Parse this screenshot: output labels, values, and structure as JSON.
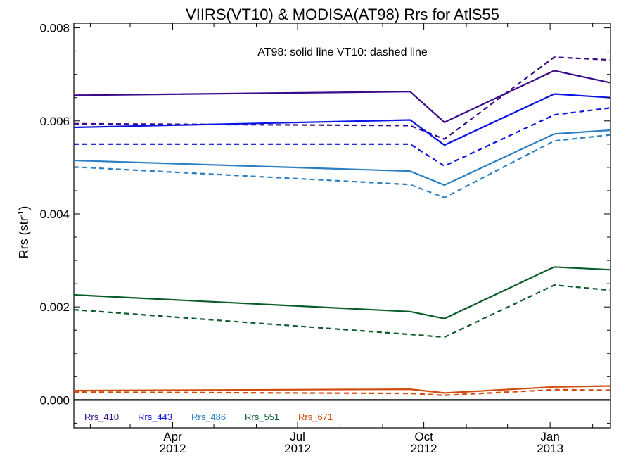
{
  "chart_data": {
    "type": "line",
    "title": "VIIRS(VT10) & MODISA(AT98)  Rrs for AtlS55",
    "annotation": "AT98: solid line   VT10: dashed line",
    "ylabel": "Rrs (str",
    "ylabel_sup": "-1",
    "xlabel": "",
    "ylim": [
      -0.0006,
      0.0081
    ],
    "xlim": [
      "2012-01-20",
      "2013-02-14"
    ],
    "grid": false,
    "legend_position": "bottom-left",
    "y_ticks": [
      {
        "value": 0.0,
        "label": "0.000"
      },
      {
        "value": 0.002,
        "label": "0.002"
      },
      {
        "value": 0.004,
        "label": "0.004"
      },
      {
        "value": 0.006,
        "label": "0.006"
      },
      {
        "value": 0.008,
        "label": "0.008"
      }
    ],
    "x_ticks": [
      {
        "date": "2012-04-01",
        "month": "Apr",
        "year": "2012"
      },
      {
        "date": "2012-07-01",
        "month": "Jul",
        "year": "2012"
      },
      {
        "date": "2012-10-01",
        "month": "Oct",
        "year": "2012"
      },
      {
        "date": "2013-01-01",
        "month": "Jan",
        "year": "2013"
      }
    ],
    "zero_line": 0,
    "x": [
      "2012-01-20",
      "2012-09-21",
      "2012-10-16",
      "2013-01-04",
      "2013-02-14"
    ],
    "series": [
      {
        "name": "Rrs_410",
        "color": "#3a0a8c",
        "at98": [
          0.00655,
          0.00663,
          0.00597,
          0.00708,
          0.00682
        ],
        "vt10": [
          0.00594,
          0.0059,
          0.00561,
          0.00737,
          0.00731
        ]
      },
      {
        "name": "Rrs_443",
        "color": "#0a14e6",
        "at98": [
          0.00586,
          0.00602,
          0.00548,
          0.00658,
          0.0065
        ],
        "vt10": [
          0.0055,
          0.0055,
          0.00503,
          0.00613,
          0.00628
        ]
      },
      {
        "name": "Rrs_486",
        "color": "#2a7fc4",
        "at98": [
          0.00515,
          0.00492,
          0.00462,
          0.00572,
          0.0058
        ],
        "vt10": [
          0.00501,
          0.00463,
          0.00435,
          0.00557,
          0.0057
        ]
      },
      {
        "name": "Rrs_551",
        "color": "#0a5c2a",
        "at98": [
          0.00226,
          0.0019,
          0.00175,
          0.00286,
          0.0028
        ],
        "vt10": [
          0.00194,
          0.00141,
          0.00135,
          0.00247,
          0.00236
        ]
      },
      {
        "name": "Rrs_671",
        "color": "#d44a0a",
        "at98": [
          0.0002,
          0.00023,
          0.00015,
          0.00028,
          0.0003
        ],
        "vt10": [
          0.00017,
          0.00014,
          0.0001,
          0.00022,
          0.00021
        ]
      }
    ]
  }
}
